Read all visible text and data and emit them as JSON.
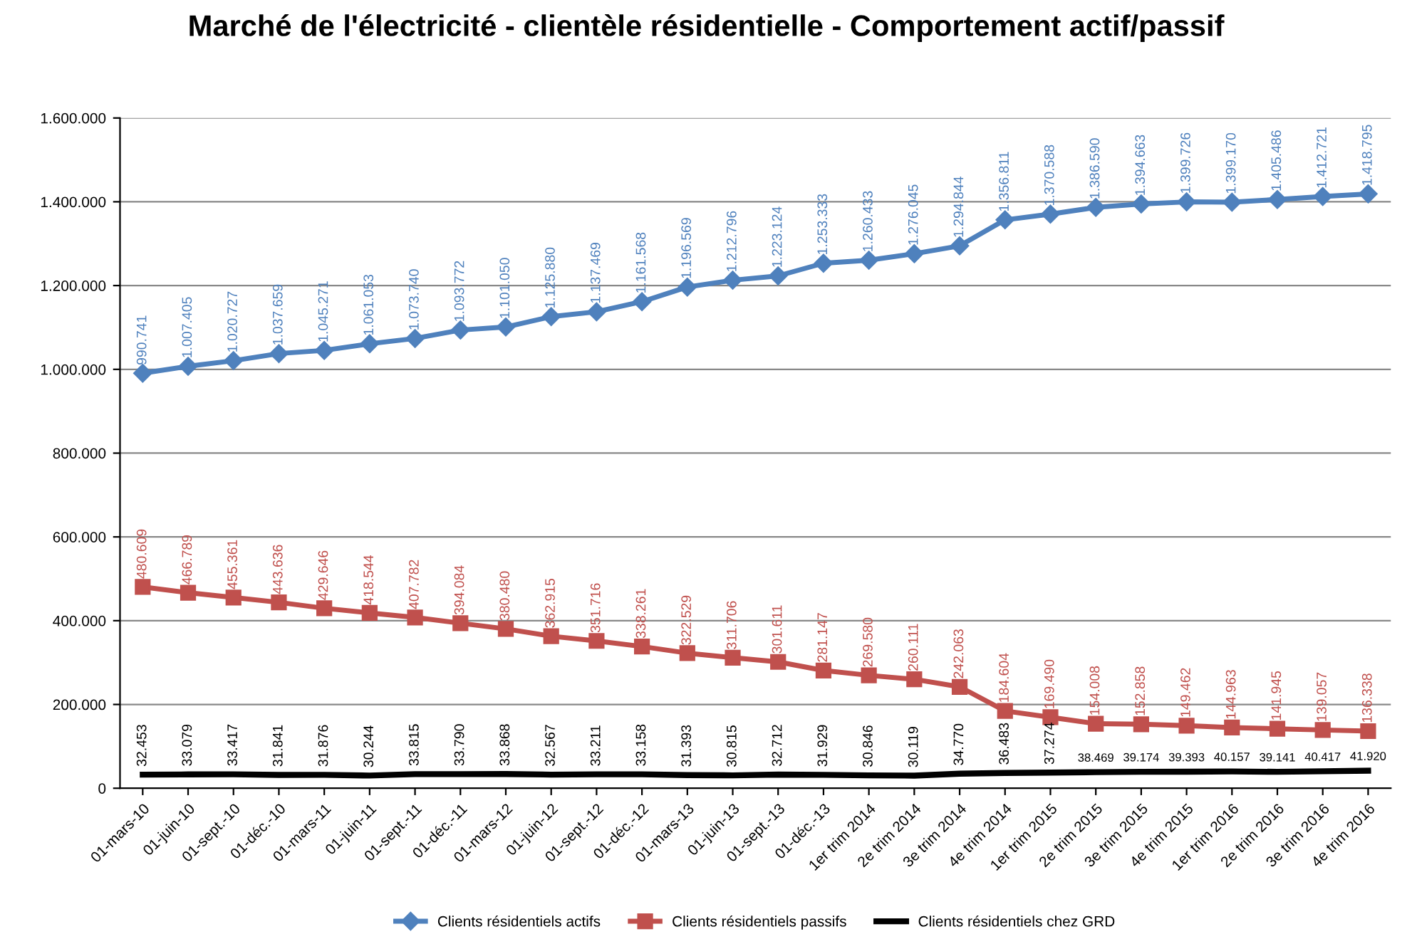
{
  "chart_data": {
    "type": "line",
    "title": "Marché de l'électricité - clientèle résidentielle - Comportement actif/passif",
    "categories": [
      "01-mars-10",
      "01-juin-10",
      "01-sept.-10",
      "01-déc.-10",
      "01-mars-11",
      "01-juin-11",
      "01-sept.-11",
      "01-déc.-11",
      "01-mars-12",
      "01-juin-12",
      "01-sept.-12",
      "01-déc.-12",
      "01-mars-13",
      "01-juin-13",
      "01-sept.-13",
      "01-déc.-13",
      "1er trim 2014",
      "2e trim 2014",
      "3e trim 2014",
      "4e trim 2014",
      "1er trim 2015",
      "2e trim 2015",
      "3e trim 2015",
      "4e trim 2015",
      "1er trim 2016",
      "2e trim 2016",
      "3e trim 2016",
      "4e trim 2016"
    ],
    "series": [
      {
        "name": "Clients résidentiels actifs",
        "color": "#4f81bd",
        "marker": "diamond",
        "values": [
          990741,
          1007405,
          1020727,
          1037659,
          1045271,
          1061053,
          1073740,
          1093772,
          1101050,
          1125880,
          1137469,
          1161568,
          1196569,
          1212796,
          1223124,
          1253333,
          1260433,
          1276045,
          1294844,
          1356811,
          1370588,
          1386590,
          1394663,
          1399726,
          1399170,
          1405486,
          1412721,
          1418795
        ],
        "value_labels": [
          "990.741",
          "1.007.405",
          "1.020.727",
          "1.037.659",
          "1.045.271",
          "1.061.053",
          "1.073.740",
          "1.093.772",
          "1.101.050",
          "1.125.880",
          "1.137.469",
          "1.161.568",
          "1.196.569",
          "1.212.796",
          "1.223.124",
          "1.253.333",
          "1.260.433",
          "1.276.045",
          "1.294.844",
          "1.356.811",
          "1.370.588",
          "1.386.590",
          "1.394.663",
          "1.399.726",
          "1.399.170",
          "1.405.486",
          "1.412.721",
          "1.418.795"
        ]
      },
      {
        "name": "Clients résidentiels passifs",
        "color": "#c0504d",
        "marker": "square",
        "values": [
          480609,
          466789,
          455361,
          443636,
          429646,
          418544,
          407782,
          394084,
          380480,
          362915,
          351716,
          338261,
          322529,
          311706,
          301611,
          281147,
          269580,
          260111,
          242063,
          184604,
          169490,
          154008,
          152858,
          149462,
          144963,
          141945,
          139057,
          136338
        ],
        "value_labels": [
          "480.609",
          "466.789",
          "455.361",
          "443.636",
          "429.646",
          "418.544",
          "407.782",
          "394.084",
          "380.480",
          "362.915",
          "351.716",
          "338.261",
          "322.529",
          "311.706",
          "301.611",
          "281.147",
          "269.580",
          "260.111",
          "242.063",
          "184.604",
          "169.490",
          "154.008",
          "152.858",
          "149.462",
          "144.963",
          "141.945",
          "139.057",
          "136.338"
        ]
      },
      {
        "name": "Clients résidentiels chez GRD",
        "color": "#000000",
        "marker": "none",
        "values": [
          32453,
          33079,
          33417,
          31841,
          31876,
          30244,
          33815,
          33790,
          33868,
          32567,
          33211,
          33158,
          31393,
          30815,
          32712,
          31929,
          30846,
          30119,
          34770,
          36483,
          37274,
          38469,
          39174,
          39393,
          40157,
          39141,
          40417,
          41920
        ],
        "value_labels": [
          "32.453",
          "33.079",
          "33.417",
          "31.841",
          "31.876",
          "30.244",
          "33.815",
          "33.790",
          "33.868",
          "32.567",
          "33.211",
          "33.158",
          "31.393",
          "30.815",
          "32.712",
          "31.929",
          "30.846",
          "30.119",
          "34.770",
          "36.483",
          "37.274",
          "38.469",
          "39.174",
          "39.393",
          "40.157",
          "39.141",
          "40.417",
          "41.920"
        ]
      }
    ],
    "ylim": [
      0,
      1600000
    ],
    "yticks": [
      {
        "value": 0,
        "label": "0"
      },
      {
        "value": 200000,
        "label": "200.000"
      },
      {
        "value": 400000,
        "label": "400.000"
      },
      {
        "value": 600000,
        "label": "600.000"
      },
      {
        "value": 800000,
        "label": "800.000"
      },
      {
        "value": 1000000,
        "label": "1.000.000"
      },
      {
        "value": 1200000,
        "label": "1.200.000"
      },
      {
        "value": 1400000,
        "label": "1.400.000"
      },
      {
        "value": 1600000,
        "label": "1.600.000"
      }
    ],
    "grid": "y",
    "legend": "bottom"
  }
}
